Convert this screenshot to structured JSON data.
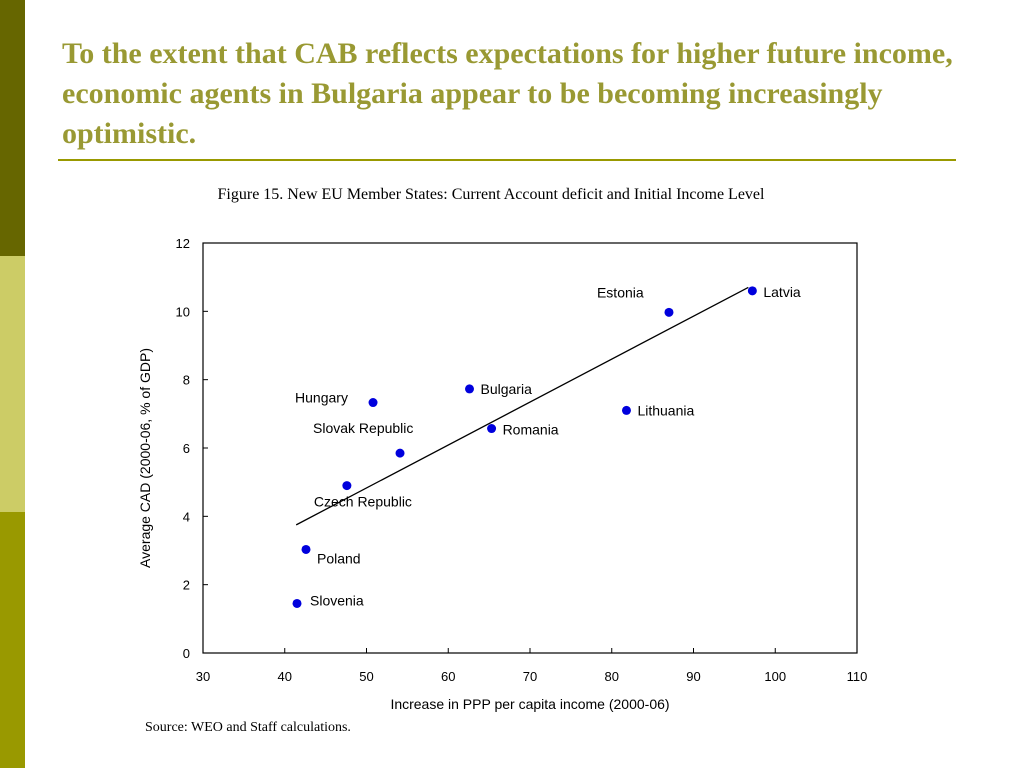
{
  "slide": {
    "title": "To the extent that CAB reflects expectations for higher future income, economic agents in Bulgaria appear to be becoming increasingly optimistic.",
    "figure_caption": "Figure 15. New EU Member States: Current Account deficit and Initial Income Level",
    "source": "Source: WEO and Staff calculations.",
    "colors": {
      "title": "#999933",
      "rule": "#999900",
      "sidebar": [
        "#666600",
        "#cccc66",
        "#999900"
      ],
      "points": "#0000dd"
    }
  },
  "chart_data": {
    "type": "scatter",
    "xlabel": "Increase in PPP per capita income (2000-06)",
    "ylabel": "Average CAD (2000-06, % of GDP)",
    "xlim": [
      30,
      110
    ],
    "ylim": [
      0,
      12
    ],
    "xticks": [
      30,
      40,
      50,
      60,
      70,
      80,
      90,
      100,
      110
    ],
    "yticks": [
      0,
      2,
      4,
      6,
      8,
      10,
      12
    ],
    "grid": false,
    "points": [
      {
        "label": "Latvia",
        "x": 97.2,
        "y": 10.6
      },
      {
        "label": "Estonia",
        "x": 87.0,
        "y": 9.97
      },
      {
        "label": "Lithuania",
        "x": 81.8,
        "y": 7.1
      },
      {
        "label": "Bulgaria",
        "x": 62.6,
        "y": 7.73
      },
      {
        "label": "Romania",
        "x": 65.3,
        "y": 6.57
      },
      {
        "label": "Hungary",
        "x": 50.8,
        "y": 7.33
      },
      {
        "label": "Slovak Republic",
        "x": 54.1,
        "y": 5.85
      },
      {
        "label": "Czech Republic",
        "x": 47.6,
        "y": 4.9
      },
      {
        "label": "Poland",
        "x": 42.6,
        "y": 3.03
      },
      {
        "label": "Slovenia",
        "x": 41.5,
        "y": 1.45
      }
    ],
    "trendline": {
      "x": [
        41.4,
        96.7
      ],
      "y": [
        3.75,
        10.7
      ]
    }
  }
}
